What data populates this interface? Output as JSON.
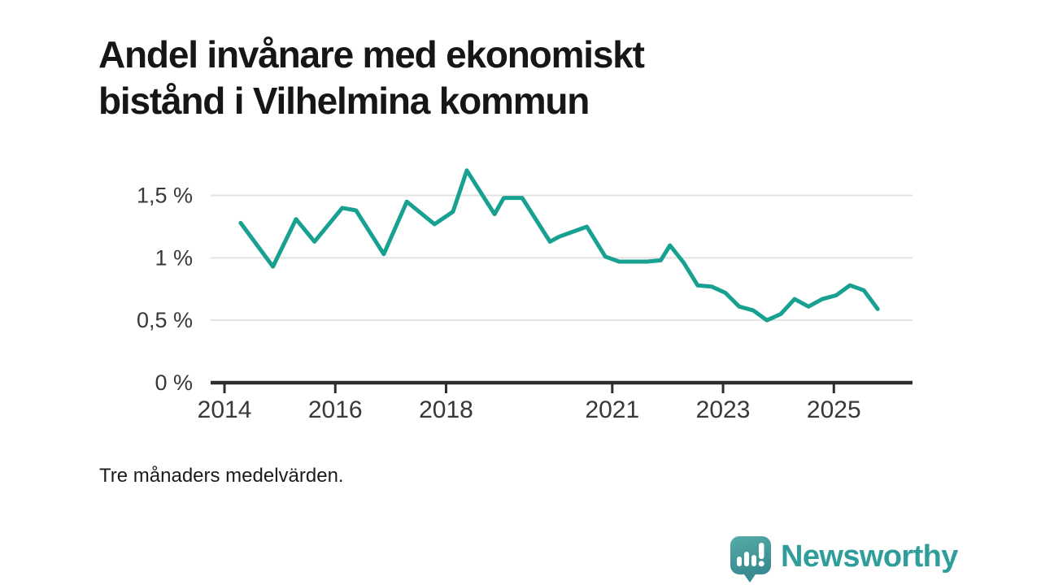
{
  "header": {
    "title_lines": [
      "Andel invånare med ekonomiskt",
      "bistånd i Vilhelmina kommun"
    ]
  },
  "footnote": "Tre månaders medelvärden.",
  "branding": {
    "name": "Newsworthy",
    "logo_icon": "speech-bubble-with-bar-chart-and-exclamation",
    "wordmark_color": "#2f9e9a",
    "icon_gradient_top": "#55aca6",
    "icon_gradient_bottom": "#3a8c92"
  },
  "chart_data": {
    "type": "line",
    "title": "Andel invånare med ekonomiskt bistånd i Vilhelmina kommun",
    "note": "Tre månaders medelvärden.",
    "unit": "%",
    "xlim": [
      2013.75,
      2026.42
    ],
    "ylim": [
      0,
      1.79
    ],
    "grid": "horizontal",
    "legend": "none",
    "x_ticks": [
      {
        "year": 2014,
        "label": "2014"
      },
      {
        "year": 2016,
        "label": "2016"
      },
      {
        "year": 2018,
        "label": "2018"
      },
      {
        "year": 2021,
        "label": "2021"
      },
      {
        "year": 2023,
        "label": "2023"
      },
      {
        "year": 2025,
        "label": "2025"
      }
    ],
    "y_ticks": [
      {
        "value": 0,
        "label": "0 %"
      },
      {
        "value": 0.5,
        "label": "0,5 %"
      },
      {
        "value": 1,
        "label": "1 %"
      },
      {
        "value": 1.5,
        "label": "1,5 %"
      }
    ],
    "colors": {
      "line": "#18a091",
      "grid": "#e2e2e2",
      "axis": "#2d2d2d",
      "tick_label": "#383838"
    },
    "series": [
      {
        "name": "Andel invånare med ekonomiskt bistånd",
        "points": [
          [
            "2014-04",
            1.28
          ],
          [
            "2014-11",
            0.93
          ],
          [
            "2015-04",
            1.31
          ],
          [
            "2015-08",
            1.13
          ],
          [
            "2016-02",
            1.4
          ],
          [
            "2016-05",
            1.38
          ],
          [
            "2016-11",
            1.03
          ],
          [
            "2017-04",
            1.45
          ],
          [
            "2017-10",
            1.27
          ],
          [
            "2018-02",
            1.37
          ],
          [
            "2018-05",
            1.7
          ],
          [
            "2018-11",
            1.35
          ],
          [
            "2019-01",
            1.48
          ],
          [
            "2019-05",
            1.48
          ],
          [
            "2019-11",
            1.13
          ],
          [
            "2020-01",
            1.17
          ],
          [
            "2020-04",
            1.21
          ],
          [
            "2020-07",
            1.25
          ],
          [
            "2020-11",
            1.01
          ],
          [
            "2021-02",
            0.97
          ],
          [
            "2021-05",
            0.97
          ],
          [
            "2021-08",
            0.97
          ],
          [
            "2021-11",
            0.98
          ],
          [
            "2022-01",
            1.1
          ],
          [
            "2022-04",
            0.96
          ],
          [
            "2022-07",
            0.78
          ],
          [
            "2022-10",
            0.77
          ],
          [
            "2023-01",
            0.72
          ],
          [
            "2023-04",
            0.61
          ],
          [
            "2023-07",
            0.58
          ],
          [
            "2023-10",
            0.5
          ],
          [
            "2024-01",
            0.55
          ],
          [
            "2024-04",
            0.67
          ],
          [
            "2024-07",
            0.61
          ],
          [
            "2024-10",
            0.67
          ],
          [
            "2025-01",
            0.7
          ],
          [
            "2025-04",
            0.78
          ],
          [
            "2025-07",
            0.74
          ],
          [
            "2025-10",
            0.59
          ]
        ]
      }
    ]
  }
}
